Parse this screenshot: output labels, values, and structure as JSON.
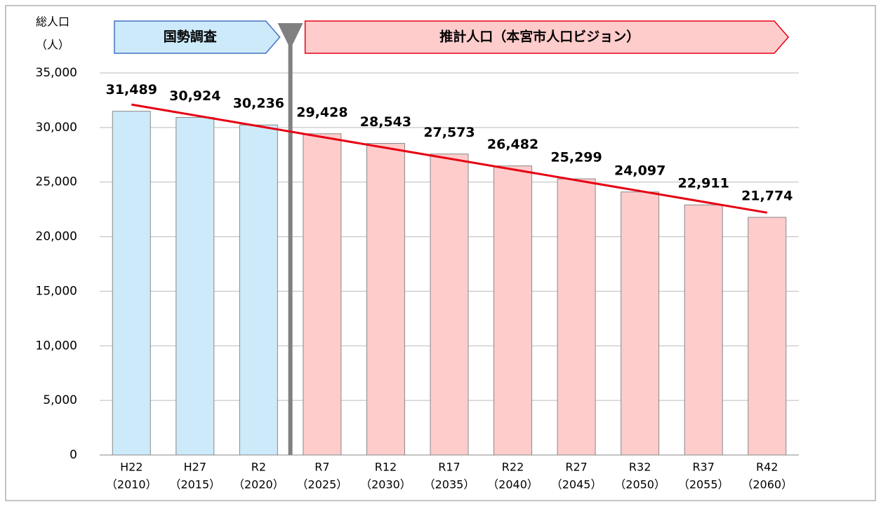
{
  "chart_data": {
    "type": "bar",
    "y_axis_label": [
      "総人口",
      "（人）"
    ],
    "categories": [
      "H22",
      "H27",
      "R2",
      "R7",
      "R12",
      "R17",
      "R22",
      "R27",
      "R32",
      "R37",
      "R42"
    ],
    "category_years": [
      "（2010）",
      "（2015）",
      "（2020）",
      "（2025）",
      "（2030）",
      "（2035）",
      "（2040）",
      "（2045）",
      "（2050）",
      "（2055）",
      "（2060）"
    ],
    "values": [
      31489,
      30924,
      30236,
      29428,
      28543,
      27573,
      26482,
      25299,
      24097,
      22911,
      21774
    ],
    "value_labels": [
      "31,489",
      "30,924",
      "30,236",
      "29,428",
      "28,543",
      "27,573",
      "26,482",
      "25,299",
      "24,097",
      "22,911",
      "21,774"
    ],
    "colors": [
      "#cceaf9",
      "#cceaf9",
      "#cceaf9",
      "#ffcccc",
      "#ffcccc",
      "#ffcccc",
      "#ffcccc",
      "#ffcccc",
      "#ffcccc",
      "#ffcccc",
      "#ffcccc"
    ],
    "trendline": {
      "color": "#e60012",
      "values": [
        32100,
        22200
      ]
    },
    "annotations": [
      {
        "text": "国勢調査",
        "from": 0,
        "to": 2,
        "color": "#cceaf9",
        "border": "#4472c4"
      },
      {
        "text": "推計人口（本宮市人口ビジョン）",
        "from": 3,
        "to": 10,
        "color": "#ffcccc",
        "border": "#e60012"
      }
    ],
    "ylim": [
      0,
      35000
    ],
    "yticks": [
      0,
      {
        "value": 5000,
        "label": "5,000"
      },
      {
        "value": 10000,
        "label": "10,000"
      },
      {
        "value": 15000,
        "label": "15,000"
      },
      {
        "value": 20000,
        "label": "20,000"
      },
      {
        "value": 25000,
        "label": "25,000"
      },
      {
        "value": 30000,
        "label": "30,000"
      },
      {
        "value": 35000,
        "label": "35,000"
      }
    ],
    "grid": true
  }
}
